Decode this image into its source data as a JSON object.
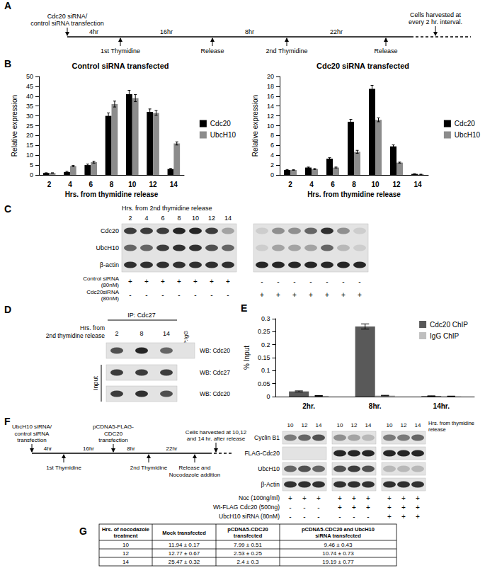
{
  "panel_labels": [
    "A",
    "B",
    "C",
    "D",
    "E",
    "F",
    "G"
  ],
  "timeline_A": {
    "events": [
      {
        "lines": [
          "Cdc20 siRNA/",
          "control siRNA transfection"
        ],
        "side": "above"
      },
      {
        "lines": [
          "1st Thymidine"
        ],
        "side": "below"
      },
      {
        "lines": [
          "Release"
        ],
        "side": "below"
      },
      {
        "lines": [
          "2nd Thymidine"
        ],
        "side": "below"
      },
      {
        "lines": [
          "Release"
        ],
        "side": "below"
      }
    ],
    "intervals": [
      "4hr",
      "16hr",
      "8hr",
      "22hr"
    ],
    "end": {
      "lines": [
        "Cells harvested at",
        "every 2 hr. interval."
      ]
    }
  },
  "chart_data": [
    {
      "type": "bar",
      "title": "Control siRNA transfected",
      "x_label": "Hrs. from thymidine release",
      "y_label": "Relative expression",
      "categories": [
        "2",
        "4",
        "6",
        "8",
        "10",
        "12",
        "14"
      ],
      "series": [
        {
          "name": "Cdc20",
          "color": "#000000",
          "values": [
            1,
            1.5,
            5,
            30,
            41,
            32,
            3
          ],
          "errors": [
            0.1,
            0.3,
            0.5,
            1.5,
            2,
            1.5,
            0.3
          ]
        },
        {
          "name": "UbcH10",
          "color": "#8c8c8c",
          "values": [
            1,
            4.5,
            6.5,
            36,
            39,
            31.5,
            16
          ],
          "errors": [
            0.1,
            0.3,
            0.5,
            1.5,
            1.8,
            1.2,
            0.8
          ]
        }
      ],
      "ylim": [
        0,
        50
      ],
      "yticks": [
        0,
        5,
        10,
        15,
        20,
        25,
        30,
        35,
        40,
        45,
        50
      ],
      "legend": "right",
      "grid": false
    },
    {
      "type": "bar",
      "title": "Cdc20 siRNA transfected",
      "x_label": "Hrs. from thymidine release",
      "y_label": "Relative expression",
      "categories": [
        "2",
        "4",
        "6",
        "8",
        "10",
        "12",
        "14"
      ],
      "series": [
        {
          "name": "Cdc20",
          "color": "#000000",
          "values": [
            1,
            1.5,
            3.3,
            10.8,
            17.5,
            5.8,
            0.2
          ],
          "errors": [
            0.1,
            0.1,
            0.2,
            0.5,
            0.7,
            0.3,
            0.05
          ]
        },
        {
          "name": "UbcH10",
          "color": "#8c8c8c",
          "values": [
            1,
            1.2,
            1.5,
            4.7,
            11.2,
            2.5,
            0.1
          ],
          "errors": [
            0.05,
            0.1,
            0.1,
            0.3,
            0.4,
            0.1,
            0.05
          ]
        }
      ],
      "ylim": [
        0,
        20
      ],
      "yticks": [
        0,
        2,
        4,
        6,
        8,
        10,
        12,
        14,
        16,
        18,
        20
      ],
      "legend": "right",
      "grid": false
    },
    {
      "type": "bar",
      "y_label": "% Input",
      "categories": [
        "2hr.",
        "8hr.",
        "14hr."
      ],
      "series": [
        {
          "name": "Cdc20 ChIP",
          "color": "#595959",
          "values": [
            0.02,
            0.27,
            0.002
          ],
          "errors": [
            0.002,
            0.01,
            0.001
          ]
        },
        {
          "name": "IgG ChIP",
          "color": "#bfbfbf",
          "values": [
            0.003,
            0.004,
            0.001
          ],
          "errors": [
            0.001,
            0.001,
            0.001
          ]
        }
      ],
      "ylim": [
        0,
        0.3
      ],
      "yticks": [
        0,
        0.05,
        0.1,
        0.15,
        0.2,
        0.25,
        0.3
      ],
      "legend": "top-right",
      "grid": false
    }
  ],
  "blot_C": {
    "header": "Hrs. from 2nd thymidine release",
    "lanes": [
      "2",
      "4",
      "6",
      "8",
      "10",
      "12",
      "14"
    ],
    "rows": [
      "Cdc20",
      "UbcH10",
      "β-actin"
    ],
    "blots": [
      {
        "bands": [
          [
            0.8,
            0.8,
            0.8,
            0.9,
            0.9,
            0.8,
            0.3
          ],
          [
            0.6,
            0.6,
            0.8,
            0.85,
            0.85,
            0.7,
            0.6
          ],
          [
            0.85,
            0.85,
            0.85,
            0.85,
            0.85,
            0.85,
            0.85
          ]
        ]
      },
      {
        "bands": [
          [
            0.1,
            0.4,
            0.4,
            0.6,
            0.85,
            0.4,
            0.1
          ],
          [
            0.1,
            0.3,
            0.3,
            0.3,
            0.6,
            0.2,
            0.1
          ],
          [
            0.9,
            0.9,
            0.9,
            0.9,
            0.9,
            0.9,
            0.9
          ]
        ]
      }
    ],
    "conditions": [
      {
        "lines": [
          "Control siRNA",
          "(80nM)"
        ],
        "signs": [
          "+",
          "+",
          "+",
          "+",
          "+",
          "+",
          "+",
          "-",
          "-",
          "-",
          "-",
          "-",
          "-",
          "-"
        ]
      },
      {
        "lines": [
          "Cdc20siRNA",
          "(80nM)"
        ],
        "signs": [
          "-",
          "-",
          "-",
          "-",
          "-",
          "-",
          "-",
          "+",
          "+",
          "+",
          "+",
          "+",
          "+",
          "+"
        ]
      }
    ]
  },
  "blot_D": {
    "header": "IP: Cdc27",
    "time_lines": [
      "Hrs. from",
      "2nd thymidine release"
    ],
    "lanes": [
      "2",
      "8",
      "14"
    ],
    "control_lane": "IP:IgG",
    "ip_row": {
      "label": "WB: Cdc20",
      "bands": [
        0.7,
        0.9,
        0.6,
        0
      ]
    },
    "input_label": "Input",
    "input_rows": [
      {
        "label": "WB: Cdc27",
        "bands": [
          0.8,
          0.8,
          0.8
        ]
      },
      {
        "label": "WB: Cdc20",
        "bands": [
          0.8,
          0.85,
          0.7
        ]
      }
    ]
  },
  "timeline_F": {
    "events": [
      {
        "lines": [
          "UbcH10 siRNA/",
          "control siRNA",
          "transfection"
        ],
        "side": "above"
      },
      {
        "lines": [
          "1st Thymidine"
        ],
        "side": "below"
      },
      {
        "lines": [
          "pCDNA5-FLAG-",
          "CDC20",
          "transfection"
        ],
        "side": "above"
      },
      {
        "lines": [
          "2nd Thymidine"
        ],
        "side": "below"
      },
      {
        "lines": [
          "Release and",
          "Nocodazole addition"
        ],
        "side": "below"
      }
    ],
    "intervals": [
      "4hr",
      "16hr",
      "8hr",
      "22hr"
    ],
    "end": {
      "lines": [
        "Cells harvested at 10,12",
        "and 14 hr. after release"
      ]
    }
  },
  "blot_F": {
    "header_lines": [
      "Hrs. from thymidine",
      "release"
    ],
    "lanes": [
      "10",
      "12",
      "14"
    ],
    "rows": [
      {
        "label": "Cyclin B1",
        "bands": [
          [
            0.5,
            0.6,
            0.7
          ],
          [
            0.4,
            0.3,
            0.2
          ],
          [
            0.5,
            0.5,
            0.6
          ]
        ]
      },
      {
        "label": "FLAG-Cdc20",
        "bands": [
          [
            0,
            0,
            0
          ],
          [
            0.9,
            0.9,
            0.9
          ],
          [
            0.9,
            0.9,
            0.9
          ]
        ]
      },
      {
        "label": "UbcH10",
        "bands": [
          [
            0.6,
            0.7,
            0.6
          ],
          [
            0.7,
            0.8,
            0.7
          ],
          [
            0.2,
            0.2,
            0.2
          ]
        ]
      },
      {
        "label": "β-Actin",
        "bands": [
          [
            0.85,
            0.85,
            0.85
          ],
          [
            0.85,
            0.85,
            0.85
          ],
          [
            0.85,
            0.85,
            0.85
          ]
        ]
      }
    ],
    "conditions": [
      {
        "label": "Noc (100ng/ml)",
        "signs": [
          "+",
          "+",
          "+",
          "+",
          "+",
          "+",
          "+",
          "+",
          "+"
        ]
      },
      {
        "label": "Wt-FLAG Cdc20 (500ng)",
        "signs": [
          "-",
          "-",
          "-",
          "+",
          "+",
          "+",
          "+",
          "+",
          "+"
        ]
      },
      {
        "label": "UbcH10 siRNA (80nM)",
        "signs": [
          "-",
          "-",
          "-",
          "-",
          "-",
          "-",
          "+",
          "+",
          "+"
        ]
      }
    ]
  },
  "table_G": {
    "header": [
      [
        "Hrs. of nocodazole",
        "treatment"
      ],
      [
        "Mock transfected"
      ],
      [
        "pCDNA5-CDC20",
        "transfected"
      ],
      [
        "pCDNA5-CDC20 and UbcH10",
        "siRNA transfected"
      ]
    ],
    "rows": [
      [
        "10",
        "11.94 ± 0.17",
        "7.99 ± 0.51",
        "9.46 ± 0.43"
      ],
      [
        "12",
        "12.77 ± 0.67",
        "2.53 ± 0.25",
        "10.74 ± 0.73"
      ],
      [
        "14",
        "25.47 ± 0.32",
        "2.4 ± 0.3",
        "19.19 ± 0.77"
      ]
    ]
  }
}
